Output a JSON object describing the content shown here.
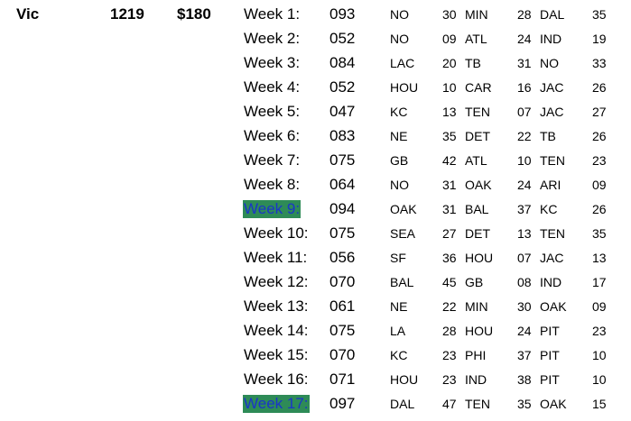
{
  "player": {
    "name": "Vic",
    "points": "1219",
    "money": "$180"
  },
  "weeks": [
    {
      "label": "Week 1:",
      "score": "093",
      "picks": [
        {
          "team": "NO",
          "pts": "30"
        },
        {
          "team": "MIN",
          "pts": "28"
        },
        {
          "team": "DAL",
          "pts": "35"
        }
      ],
      "highlighted": false
    },
    {
      "label": "Week 2:",
      "score": "052",
      "picks": [
        {
          "team": "NO",
          "pts": "09"
        },
        {
          "team": "ATL",
          "pts": "24"
        },
        {
          "team": "IND",
          "pts": "19"
        }
      ],
      "highlighted": false
    },
    {
      "label": "Week 3:",
      "score": "084",
      "picks": [
        {
          "team": "LAC",
          "pts": "20"
        },
        {
          "team": "TB",
          "pts": "31"
        },
        {
          "team": "NO",
          "pts": "33"
        }
      ],
      "highlighted": false
    },
    {
      "label": "Week 4:",
      "score": "052",
      "picks": [
        {
          "team": "HOU",
          "pts": "10"
        },
        {
          "team": "CAR",
          "pts": "16"
        },
        {
          "team": "JAC",
          "pts": "26"
        }
      ],
      "highlighted": false
    },
    {
      "label": "Week 5:",
      "score": "047",
      "picks": [
        {
          "team": "KC",
          "pts": "13"
        },
        {
          "team": "TEN",
          "pts": "07"
        },
        {
          "team": "JAC",
          "pts": "27"
        }
      ],
      "highlighted": false
    },
    {
      "label": "Week 6:",
      "score": "083",
      "picks": [
        {
          "team": "NE",
          "pts": "35"
        },
        {
          "team": "DET",
          "pts": "22"
        },
        {
          "team": "TB",
          "pts": "26"
        }
      ],
      "highlighted": false
    },
    {
      "label": "Week 7:",
      "score": "075",
      "picks": [
        {
          "team": "GB",
          "pts": "42"
        },
        {
          "team": "ATL",
          "pts": "10"
        },
        {
          "team": "TEN",
          "pts": "23"
        }
      ],
      "highlighted": false
    },
    {
      "label": "Week 8:",
      "score": "064",
      "picks": [
        {
          "team": "NO",
          "pts": "31"
        },
        {
          "team": "OAK",
          "pts": "24"
        },
        {
          "team": "ARI",
          "pts": "09"
        }
      ],
      "highlighted": false
    },
    {
      "label": "Week 9:",
      "score": "094",
      "picks": [
        {
          "team": "OAK",
          "pts": "31"
        },
        {
          "team": "BAL",
          "pts": "37"
        },
        {
          "team": "KC",
          "pts": "26"
        }
      ],
      "highlighted": true
    },
    {
      "label": "Week 10:",
      "score": "075",
      "picks": [
        {
          "team": "SEA",
          "pts": "27"
        },
        {
          "team": "DET",
          "pts": "13"
        },
        {
          "team": "TEN",
          "pts": "35"
        }
      ],
      "highlighted": false
    },
    {
      "label": "Week 11:",
      "score": "056",
      "picks": [
        {
          "team": "SF",
          "pts": "36"
        },
        {
          "team": "HOU",
          "pts": "07"
        },
        {
          "team": "JAC",
          "pts": "13"
        }
      ],
      "highlighted": false
    },
    {
      "label": "Week 12:",
      "score": "070",
      "picks": [
        {
          "team": "BAL",
          "pts": "45"
        },
        {
          "team": "GB",
          "pts": "08"
        },
        {
          "team": "IND",
          "pts": "17"
        }
      ],
      "highlighted": false
    },
    {
      "label": "Week 13:",
      "score": "061",
      "picks": [
        {
          "team": "NE",
          "pts": "22"
        },
        {
          "team": "MIN",
          "pts": "30"
        },
        {
          "team": "OAK",
          "pts": "09"
        }
      ],
      "highlighted": false
    },
    {
      "label": "Week 14:",
      "score": "075",
      "picks": [
        {
          "team": "LA",
          "pts": "28"
        },
        {
          "team": "HOU",
          "pts": "24"
        },
        {
          "team": "PIT",
          "pts": "23"
        }
      ],
      "highlighted": false
    },
    {
      "label": "Week 15:",
      "score": "070",
      "picks": [
        {
          "team": "KC",
          "pts": "23"
        },
        {
          "team": "PHI",
          "pts": "37"
        },
        {
          "team": "PIT",
          "pts": "10"
        }
      ],
      "highlighted": false
    },
    {
      "label": "Week 16:",
      "score": "071",
      "picks": [
        {
          "team": "HOU",
          "pts": "23"
        },
        {
          "team": "IND",
          "pts": "38"
        },
        {
          "team": "PIT",
          "pts": "10"
        }
      ],
      "highlighted": false
    },
    {
      "label": "Week 17:",
      "score": "097",
      "picks": [
        {
          "team": "DAL",
          "pts": "47"
        },
        {
          "team": "TEN",
          "pts": "35"
        },
        {
          "team": "OAK",
          "pts": "15"
        }
      ],
      "highlighted": true
    }
  ],
  "colors": {
    "highlight_bg": "#2e8b57",
    "highlight_text": "#1a35c9"
  }
}
